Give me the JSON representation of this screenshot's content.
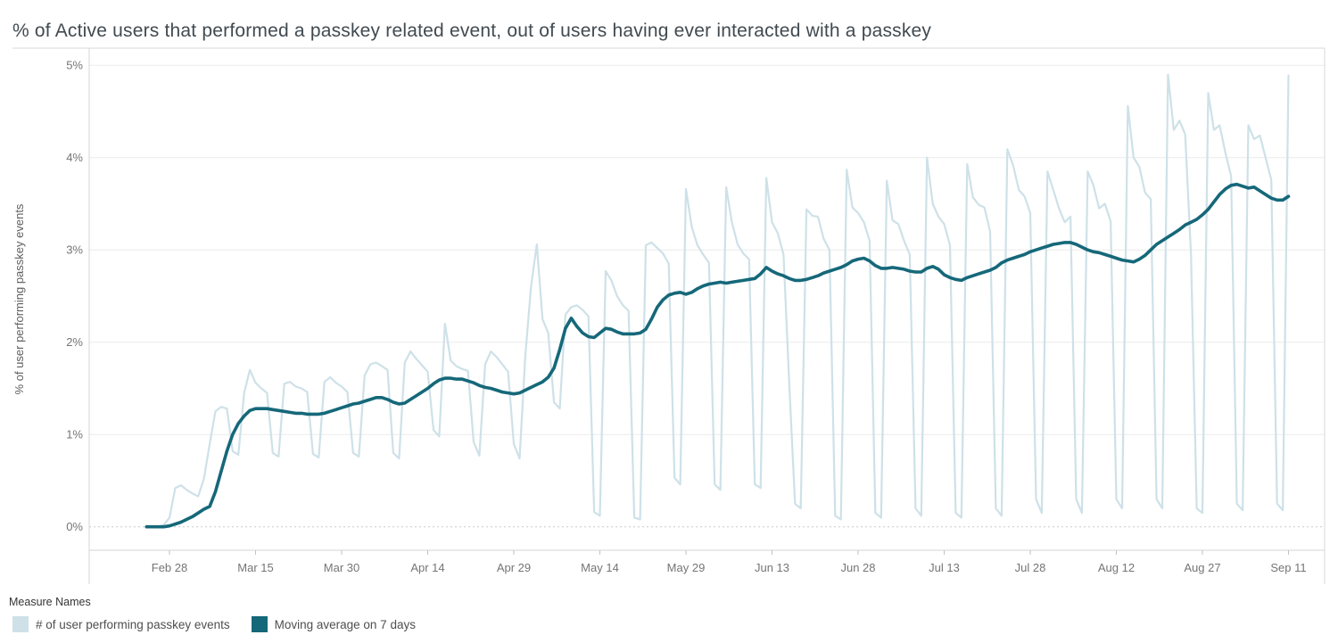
{
  "title": "% of Active users that performed a passkey related event, out of users having ever interacted with a passkey",
  "legend": {
    "title": "Measure Names",
    "items": [
      {
        "label": "# of user performing passkey events",
        "color": "#cee1e8"
      },
      {
        "label": "Moving average on 7 days",
        "color": "#156879"
      }
    ]
  },
  "chart_data": {
    "type": "line",
    "title": "% of Active users that performed a passkey related event, out of users having ever interacted with a passkey",
    "xlabel": "",
    "ylabel": "% of user performing passkey events",
    "ylim": [
      0,
      5.2
    ],
    "grid": "horizontal",
    "zero_line": "dotted",
    "legend_position": "bottom-left",
    "y_ticks": [
      {
        "value": 0,
        "label": "0%"
      },
      {
        "value": 1,
        "label": "1%"
      },
      {
        "value": 2,
        "label": "2%"
      },
      {
        "value": 3,
        "label": "3%"
      },
      {
        "value": 4,
        "label": "4%"
      },
      {
        "value": 5,
        "label": "5%"
      }
    ],
    "x_ticks": [
      {
        "index": 4,
        "label": "Feb 28"
      },
      {
        "index": 19,
        "label": "Mar 15"
      },
      {
        "index": 34,
        "label": "Mar 30"
      },
      {
        "index": 49,
        "label": "Apr 14"
      },
      {
        "index": 64,
        "label": "Apr 29"
      },
      {
        "index": 79,
        "label": "May 14"
      },
      {
        "index": 94,
        "label": "May 29"
      },
      {
        "index": 109,
        "label": "Jun 13"
      },
      {
        "index": 124,
        "label": "Jun 28"
      },
      {
        "index": 139,
        "label": "Jul 13"
      },
      {
        "index": 154,
        "label": "Jul 28"
      },
      {
        "index": 169,
        "label": "Aug 12"
      },
      {
        "index": 184,
        "label": "Aug 27"
      },
      {
        "index": 199,
        "label": "Sep 11"
      }
    ],
    "dates": [
      "Feb 24",
      "Feb 25",
      "Feb 26",
      "Feb 27",
      "Feb 28",
      "Mar 1",
      "Mar 2",
      "Mar 3",
      "Mar 4",
      "Mar 5",
      "Mar 6",
      "Mar 7",
      "Mar 8",
      "Mar 9",
      "Mar 10",
      "Mar 11",
      "Mar 12",
      "Mar 13",
      "Mar 14",
      "Mar 15",
      "Mar 16",
      "Mar 17",
      "Mar 18",
      "Mar 19",
      "Mar 20",
      "Mar 21",
      "Mar 22",
      "Mar 23",
      "Mar 24",
      "Mar 25",
      "Mar 26",
      "Mar 27",
      "Mar 28",
      "Mar 29",
      "Mar 30",
      "Mar 31",
      "Apr 1",
      "Apr 2",
      "Apr 3",
      "Apr 4",
      "Apr 5",
      "Apr 6",
      "Apr 7",
      "Apr 8",
      "Apr 9",
      "Apr 10",
      "Apr 11",
      "Apr 12",
      "Apr 13",
      "Apr 14",
      "Apr 15",
      "Apr 16",
      "Apr 17",
      "Apr 18",
      "Apr 19",
      "Apr 20",
      "Apr 21",
      "Apr 22",
      "Apr 23",
      "Apr 24",
      "Apr 25",
      "Apr 26",
      "Apr 27",
      "Apr 28",
      "Apr 29",
      "Apr 30",
      "May 1",
      "May 2",
      "May 3",
      "May 4",
      "May 5",
      "May 6",
      "May 7",
      "May 8",
      "May 9",
      "May 10",
      "May 11",
      "May 12",
      "May 13",
      "May 14",
      "May 15",
      "May 16",
      "May 17",
      "May 18",
      "May 19",
      "May 20",
      "May 21",
      "May 22",
      "May 23",
      "May 24",
      "May 25",
      "May 26",
      "May 27",
      "May 28",
      "May 29",
      "May 30",
      "May 31",
      "Jun 1",
      "Jun 2",
      "Jun 3",
      "Jun 4",
      "Jun 5",
      "Jun 6",
      "Jun 7",
      "Jun 8",
      "Jun 9",
      "Jun 10",
      "Jun 11",
      "Jun 12",
      "Jun 13",
      "Jun 14",
      "Jun 15",
      "Jun 16",
      "Jun 17",
      "Jun 18",
      "Jun 19",
      "Jun 20",
      "Jun 21",
      "Jun 22",
      "Jun 23",
      "Jun 24",
      "Jun 25",
      "Jun 26",
      "Jun 27",
      "Jun 28",
      "Jun 29",
      "Jun 30",
      "Jul 1",
      "Jul 2",
      "Jul 3",
      "Jul 4",
      "Jul 5",
      "Jul 6",
      "Jul 7",
      "Jul 8",
      "Jul 9",
      "Jul 10",
      "Jul 11",
      "Jul 12",
      "Jul 13",
      "Jul 14",
      "Jul 15",
      "Jul 16",
      "Jul 17",
      "Jul 18",
      "Jul 19",
      "Jul 20",
      "Jul 21",
      "Jul 22",
      "Jul 23",
      "Jul 24",
      "Jul 25",
      "Jul 26",
      "Jul 27",
      "Jul 28",
      "Jul 29",
      "Jul 30",
      "Jul 31",
      "Aug 1",
      "Aug 2",
      "Aug 3",
      "Aug 4",
      "Aug 5",
      "Aug 6",
      "Aug 7",
      "Aug 8",
      "Aug 9",
      "Aug 10",
      "Aug 11",
      "Aug 12",
      "Aug 13",
      "Aug 14",
      "Aug 15",
      "Aug 16",
      "Aug 17",
      "Aug 18",
      "Aug 19",
      "Aug 20",
      "Aug 21",
      "Aug 22",
      "Aug 23",
      "Aug 24",
      "Aug 25",
      "Aug 26",
      "Aug 27",
      "Aug 28",
      "Aug 29",
      "Aug 30",
      "Aug 31",
      "Sep 1",
      "Sep 2",
      "Sep 3",
      "Sep 4",
      "Sep 5",
      "Sep 6",
      "Sep 7",
      "Sep 8",
      "Sep 9",
      "Sep 10",
      "Sep 11"
    ],
    "series": [
      {
        "name": "# of user performing passkey events",
        "color": "#cee1e8",
        "width": 2.2,
        "values": [
          0.0,
          0.0,
          0.0,
          0.02,
          0.1,
          0.42,
          0.45,
          0.4,
          0.36,
          0.33,
          0.52,
          0.9,
          1.25,
          1.3,
          1.28,
          0.82,
          0.78,
          1.45,
          1.7,
          1.56,
          1.5,
          1.45,
          0.8,
          0.76,
          1.55,
          1.57,
          1.52,
          1.5,
          1.46,
          0.79,
          0.75,
          1.57,
          1.62,
          1.56,
          1.52,
          1.46,
          0.8,
          0.76,
          1.64,
          1.76,
          1.78,
          1.74,
          1.7,
          0.8,
          0.74,
          1.78,
          1.9,
          1.82,
          1.75,
          1.68,
          1.05,
          0.98,
          2.2,
          1.8,
          1.74,
          1.71,
          1.69,
          0.92,
          0.77,
          1.76,
          1.9,
          1.84,
          1.76,
          1.68,
          0.9,
          0.74,
          1.85,
          2.6,
          3.06,
          2.25,
          2.1,
          1.35,
          1.28,
          2.3,
          2.38,
          2.4,
          2.35,
          2.28,
          0.16,
          0.12,
          2.77,
          2.67,
          2.5,
          2.4,
          2.34,
          0.1,
          0.08,
          3.05,
          3.08,
          3.02,
          2.96,
          2.85,
          0.53,
          0.46,
          3.66,
          3.25,
          3.05,
          2.95,
          2.86,
          0.46,
          0.4,
          3.68,
          3.3,
          3.06,
          2.96,
          2.9,
          0.46,
          0.42,
          3.78,
          3.3,
          3.18,
          2.95,
          1.55,
          0.25,
          0.2,
          3.44,
          3.37,
          3.36,
          3.12,
          3.0,
          0.12,
          0.08,
          3.87,
          3.46,
          3.4,
          3.3,
          3.1,
          0.15,
          0.1,
          3.75,
          3.32,
          3.28,
          3.1,
          2.95,
          0.2,
          0.12,
          4.0,
          3.5,
          3.36,
          3.28,
          3.05,
          0.15,
          0.1,
          3.93,
          3.57,
          3.49,
          3.46,
          3.2,
          0.2,
          0.12,
          4.09,
          3.92,
          3.65,
          3.58,
          3.4,
          0.3,
          0.15,
          3.85,
          3.65,
          3.45,
          3.3,
          3.36,
          0.3,
          0.15,
          3.85,
          3.7,
          3.45,
          3.5,
          3.31,
          0.3,
          0.2,
          4.56,
          4.0,
          3.9,
          3.62,
          3.55,
          0.3,
          0.2,
          4.9,
          4.3,
          4.4,
          4.25,
          2.95,
          0.2,
          0.15,
          4.7,
          4.3,
          4.35,
          4.05,
          3.8,
          0.25,
          0.18,
          4.35,
          4.2,
          4.24,
          4.0,
          3.76,
          0.25,
          0.18,
          4.89
        ]
      },
      {
        "name": "Moving average on 7 days",
        "color": "#156879",
        "width": 3.6,
        "values": [
          0.0,
          0.0,
          0.0,
          0.0,
          0.01,
          0.03,
          0.05,
          0.08,
          0.11,
          0.15,
          0.19,
          0.22,
          0.38,
          0.6,
          0.82,
          1.0,
          1.12,
          1.2,
          1.26,
          1.28,
          1.28,
          1.28,
          1.27,
          1.26,
          1.25,
          1.24,
          1.23,
          1.23,
          1.22,
          1.22,
          1.22,
          1.23,
          1.25,
          1.27,
          1.29,
          1.31,
          1.33,
          1.34,
          1.36,
          1.38,
          1.4,
          1.4,
          1.38,
          1.35,
          1.33,
          1.34,
          1.38,
          1.42,
          1.46,
          1.5,
          1.55,
          1.59,
          1.61,
          1.61,
          1.6,
          1.6,
          1.58,
          1.56,
          1.53,
          1.51,
          1.5,
          1.48,
          1.46,
          1.45,
          1.44,
          1.45,
          1.48,
          1.51,
          1.54,
          1.57,
          1.62,
          1.72,
          1.92,
          2.15,
          2.26,
          2.17,
          2.1,
          2.06,
          2.05,
          2.1,
          2.15,
          2.14,
          2.11,
          2.09,
          2.09,
          2.09,
          2.1,
          2.14,
          2.25,
          2.38,
          2.46,
          2.51,
          2.53,
          2.54,
          2.52,
          2.54,
          2.58,
          2.61,
          2.63,
          2.64,
          2.65,
          2.64,
          2.65,
          2.66,
          2.67,
          2.68,
          2.69,
          2.74,
          2.81,
          2.77,
          2.74,
          2.72,
          2.69,
          2.67,
          2.67,
          2.68,
          2.7,
          2.72,
          2.75,
          2.77,
          2.79,
          2.81,
          2.84,
          2.88,
          2.9,
          2.91,
          2.88,
          2.83,
          2.8,
          2.8,
          2.81,
          2.8,
          2.79,
          2.77,
          2.76,
          2.76,
          2.8,
          2.82,
          2.79,
          2.73,
          2.7,
          2.68,
          2.67,
          2.7,
          2.72,
          2.74,
          2.76,
          2.78,
          2.81,
          2.86,
          2.89,
          2.91,
          2.93,
          2.95,
          2.98,
          3.0,
          3.02,
          3.04,
          3.06,
          3.07,
          3.08,
          3.08,
          3.06,
          3.03,
          3.0,
          2.98,
          2.97,
          2.95,
          2.93,
          2.91,
          2.89,
          2.88,
          2.87,
          2.9,
          2.94,
          3.0,
          3.06,
          3.1,
          3.14,
          3.18,
          3.22,
          3.27,
          3.3,
          3.33,
          3.38,
          3.44,
          3.52,
          3.6,
          3.66,
          3.7,
          3.71,
          3.69,
          3.67,
          3.68,
          3.64,
          3.6,
          3.56,
          3.54,
          3.54,
          3.58
        ]
      }
    ]
  }
}
